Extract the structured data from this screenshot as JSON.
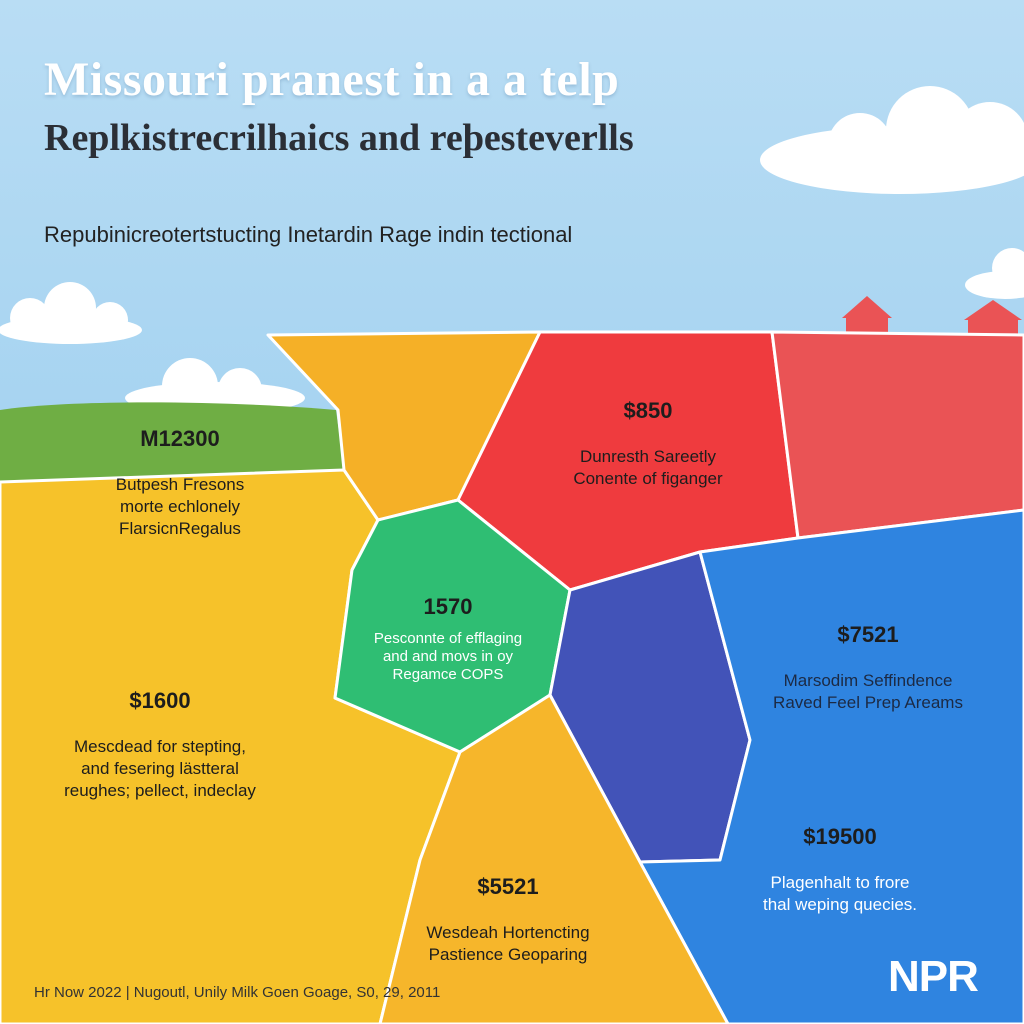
{
  "header": {
    "title": "Missouri pranest in a a telp",
    "subtitle": "Replkistrecrilhaics and reþesteverlls",
    "tagline": "Repubinicreotertstucting Inetardin Rage indin tectional"
  },
  "regions": [
    {
      "id": "northwest",
      "value": "M12300",
      "desc": [
        "Butpesh Fresons",
        "morte echlonely",
        "FlarsicnRegalus"
      ]
    },
    {
      "id": "northeast",
      "value": "$850",
      "desc": [
        "Dunresth Sareetly",
        "Conente of figanger"
      ]
    },
    {
      "id": "central",
      "value": "1570",
      "desc": [
        "Pesconnte of efflaging",
        "and and movs in oy",
        "Regamce COPS"
      ]
    },
    {
      "id": "west",
      "value": "$1600",
      "desc": [
        "Mescdead for stepting,",
        "and fesering lästteral",
        "reughes; pellect, indeclay"
      ]
    },
    {
      "id": "east",
      "value": "$7521",
      "desc": [
        "Marsodim Seffindence",
        "Raved Feel Prep Areams"
      ]
    },
    {
      "id": "southeast",
      "value": "$19500",
      "desc": [
        "Plagenhalt to frore",
        "thal weping quecies."
      ]
    },
    {
      "id": "south",
      "value": "$5521",
      "desc": [
        "Wesdeah Hortencting",
        "Pastience Geoparing"
      ]
    }
  ],
  "colors": {
    "yellow": "#f6c22a",
    "orange": "#f5b027",
    "red": "#ef3b3e",
    "coral": "#ea5355",
    "green": "#2fbe73",
    "indigo": "#4253b8",
    "blue": "#2f84e0",
    "grass": "#6fae44"
  },
  "footer": {
    "credit": "Hr Now 2022 | Nugoutl, Unily Milk Goen Goage, S0, 29, 2011"
  },
  "logo": {
    "text": "NPR"
  }
}
